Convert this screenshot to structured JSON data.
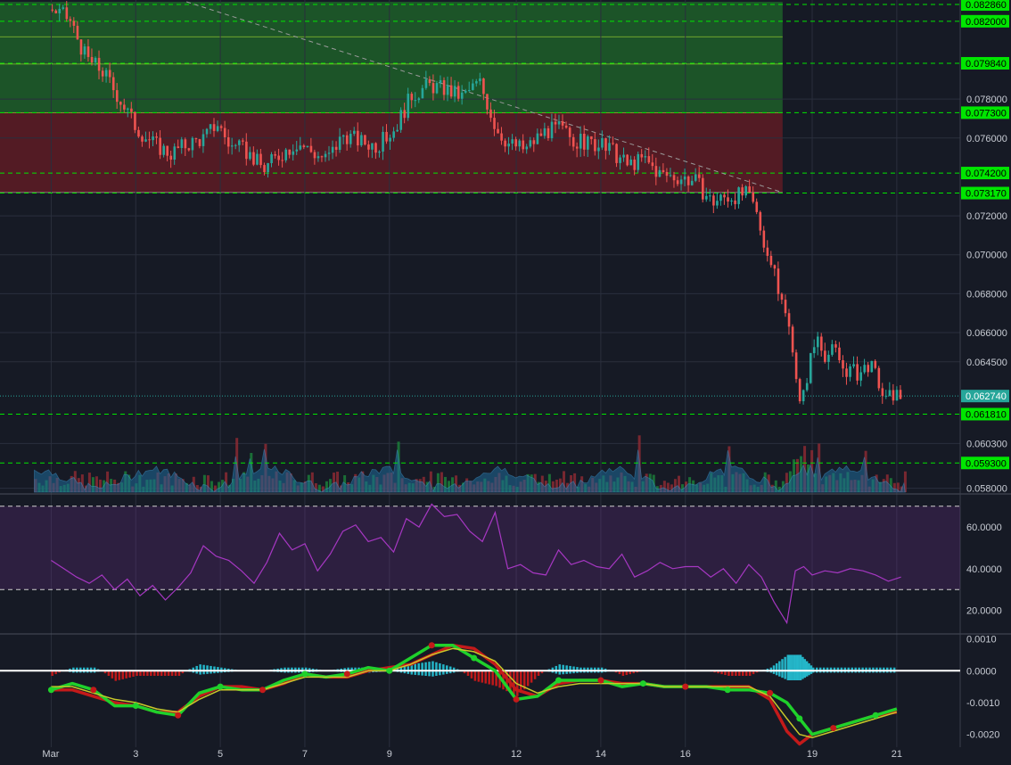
{
  "chart_data": [
    {
      "type": "candlestick",
      "panel": "price",
      "ylim": [
        0.0578,
        0.083
      ],
      "x_range": [
        0.0,
        22.5
      ],
      "price_ticks": [
        "0.078000",
        "0.076000",
        "0.072000",
        "0.070000",
        "0.068000",
        "0.066000",
        "0.064500",
        "0.060300",
        "0.058000"
      ],
      "x_ticks": [
        {
          "x": 1.0,
          "label": "Mar"
        },
        {
          "x": 3.0,
          "label": "3"
        },
        {
          "x": 5.0,
          "label": "5"
        },
        {
          "x": 7.0,
          "label": "7"
        },
        {
          "x": 9.0,
          "label": "9"
        },
        {
          "x": 12.0,
          "label": "12"
        },
        {
          "x": 14.0,
          "label": "14"
        },
        {
          "x": 16.0,
          "label": "16"
        },
        {
          "x": 19.0,
          "label": "19"
        },
        {
          "x": 21.0,
          "label": "21"
        }
      ],
      "horizontal_levels": [
        {
          "value": 0.08286,
          "label": "0.082860",
          "color": "#00e600"
        },
        {
          "value": 0.082,
          "label": "0.082000",
          "color": "#00e600"
        },
        {
          "value": 0.07984,
          "label": "0.079840",
          "color": "#00e600"
        },
        {
          "value": 0.0773,
          "label": "0.077300",
          "color": "#00e600"
        },
        {
          "value": 0.0742,
          "label": "0.074200",
          "color": "#00e600"
        },
        {
          "value": 0.07317,
          "label": "0.073170",
          "color": "#00e600"
        },
        {
          "value": 0.06181,
          "label": "0.061810",
          "color": "#00e600"
        },
        {
          "value": 0.0593,
          "label": "0.059300",
          "color": "#00e600"
        }
      ],
      "last_price": {
        "value": 0.06274,
        "label": "0.062740",
        "color": "#26a69a"
      },
      "zones": [
        {
          "from": 0.0773,
          "to": 0.083,
          "color": "#1f6b2a"
        },
        {
          "from": 0.0732,
          "to": 0.0773,
          "color": "#6b1c24"
        }
      ],
      "zone_end_x": 18.3,
      "trendline": {
        "from": [
          4.2,
          0.083
        ],
        "to": [
          18.3,
          0.0732
        ]
      },
      "close_path": [
        [
          1.0,
          0.0826
        ],
        [
          1.4,
          0.0821
        ],
        [
          1.8,
          0.0801
        ],
        [
          2.2,
          0.0794
        ],
        [
          2.6,
          0.078
        ],
        [
          3.0,
          0.0765
        ],
        [
          3.4,
          0.0757
        ],
        [
          3.8,
          0.0752
        ],
        [
          4.2,
          0.0757
        ],
        [
          4.6,
          0.076
        ],
        [
          4.9,
          0.0768
        ],
        [
          5.2,
          0.0756
        ],
        [
          5.6,
          0.0753
        ],
        [
          6.0,
          0.0744
        ],
        [
          6.4,
          0.0752
        ],
        [
          6.8,
          0.0758
        ],
        [
          7.2,
          0.0752
        ],
        [
          7.5,
          0.0749
        ],
        [
          7.9,
          0.0762
        ],
        [
          8.3,
          0.0758
        ],
        [
          8.7,
          0.0756
        ],
        [
          9.1,
          0.0765
        ],
        [
          9.5,
          0.0782
        ],
        [
          9.9,
          0.0787
        ],
        [
          10.3,
          0.0785
        ],
        [
          10.7,
          0.0781
        ],
        [
          11.1,
          0.0789
        ],
        [
          11.5,
          0.0765
        ],
        [
          11.8,
          0.0757
        ],
        [
          12.2,
          0.0754
        ],
        [
          12.6,
          0.0763
        ],
        [
          13.0,
          0.0765
        ],
        [
          13.4,
          0.0758
        ],
        [
          13.8,
          0.0757
        ],
        [
          14.2,
          0.0754
        ],
        [
          14.6,
          0.0746
        ],
        [
          15.0,
          0.0749
        ],
        [
          15.4,
          0.0741
        ],
        [
          15.8,
          0.074
        ],
        [
          16.2,
          0.0738
        ],
        [
          16.6,
          0.0727
        ],
        [
          17.0,
          0.073
        ],
        [
          17.4,
          0.0731
        ],
        [
          17.6,
          0.0725
        ],
        [
          17.9,
          0.0702
        ],
        [
          18.2,
          0.068
        ],
        [
          18.5,
          0.0656
        ],
        [
          18.7,
          0.0619
        ],
        [
          18.9,
          0.0644
        ],
        [
          19.1,
          0.0659
        ],
        [
          19.3,
          0.0648
        ],
        [
          19.5,
          0.0651
        ],
        [
          19.7,
          0.0642
        ],
        [
          19.9,
          0.064
        ],
        [
          20.1,
          0.0639
        ],
        [
          20.3,
          0.0644
        ],
        [
          20.5,
          0.0637
        ],
        [
          20.7,
          0.0624
        ],
        [
          20.9,
          0.0629
        ],
        [
          21.1,
          0.0627
        ]
      ]
    },
    {
      "type": "histogram",
      "panel": "volume",
      "note_overlay_area": true,
      "color_up": "#1b7c3a",
      "color_down": "#8a2a33",
      "area_color": "#1e6a9a"
    },
    {
      "type": "line",
      "panel": "rsi",
      "ylim": [
        10,
        75
      ],
      "ticks": [
        "60.0000",
        "40.0000",
        "20.0000"
      ],
      "band": [
        30,
        70
      ],
      "color": "#a637c2",
      "x": [
        1.0,
        1.3,
        1.6,
        1.9,
        2.2,
        2.5,
        2.8,
        3.1,
        3.4,
        3.7,
        4.0,
        4.3,
        4.6,
        4.9,
        5.2,
        5.5,
        5.8,
        6.1,
        6.4,
        6.7,
        7.0,
        7.3,
        7.6,
        7.9,
        8.2,
        8.5,
        8.8,
        9.1,
        9.4,
        9.7,
        10.0,
        10.3,
        10.6,
        10.9,
        11.2,
        11.5,
        11.8,
        12.1,
        12.4,
        12.7,
        13.0,
        13.3,
        13.6,
        13.9,
        14.2,
        14.5,
        14.8,
        15.1,
        15.4,
        15.7,
        16.0,
        16.3,
        16.6,
        16.9,
        17.2,
        17.5,
        17.8,
        18.1,
        18.4,
        18.6,
        18.8,
        19.0,
        19.3,
        19.6,
        19.9,
        20.2,
        20.5,
        20.8,
        21.1
      ],
      "values": [
        44,
        40,
        36,
        33,
        37,
        30,
        35,
        27,
        32,
        25,
        31,
        38,
        51,
        46,
        44,
        39,
        33,
        43,
        57,
        49,
        52,
        39,
        47,
        58,
        61,
        53,
        55,
        48,
        64,
        60,
        71,
        65,
        66,
        58,
        53,
        67,
        40,
        42,
        38,
        37,
        49,
        42,
        44,
        41,
        40,
        47,
        36,
        39,
        43,
        40,
        41,
        41,
        36,
        40,
        33,
        42,
        36,
        24,
        14,
        39,
        41,
        37,
        39,
        38,
        40,
        39,
        37,
        34,
        36
      ]
    },
    {
      "type": "line",
      "panel": "macd",
      "ylim": [
        -0.0024,
        0.0011
      ],
      "ticks": [
        "0.0010",
        "0.0000",
        "-0.0010",
        "-0.0020"
      ],
      "x": [
        1.0,
        1.5,
        2.0,
        2.5,
        3.0,
        3.5,
        4.0,
        4.5,
        5.0,
        5.5,
        6.0,
        6.5,
        7.0,
        7.5,
        8.0,
        8.5,
        9.0,
        9.5,
        10.0,
        10.5,
        11.0,
        11.5,
        12.0,
        12.5,
        13.0,
        13.5,
        14.0,
        14.5,
        15.0,
        15.5,
        16.0,
        16.5,
        17.0,
        17.5,
        18.0,
        18.4,
        18.7,
        19.0,
        19.5,
        20.0,
        20.5,
        21.0
      ],
      "series": [
        {
          "color": "#1fd12b",
          "values": [
            -0.0006,
            -0.0004,
            -0.0006,
            -0.0011,
            -0.0011,
            -0.0013,
            -0.0014,
            -0.0007,
            -0.0005,
            -0.0006,
            -0.0006,
            -0.0003,
            -0.0001,
            -0.0002,
            -0.0001,
            0.0001,
            0.0,
            0.0004,
            0.0008,
            0.0008,
            0.0004,
            0.0,
            -0.0009,
            -0.0008,
            -0.0003,
            -0.0003,
            -0.0003,
            -0.0005,
            -0.0004,
            -0.0005,
            -0.0005,
            -0.0005,
            -0.0006,
            -0.0006,
            -0.0007,
            -0.001,
            -0.0015,
            -0.002,
            -0.0018,
            -0.0016,
            -0.0014,
            -0.0012
          ]
        },
        {
          "color": "#c41a1a",
          "values": [
            -0.0006,
            -0.0006,
            -0.0008,
            -0.001,
            -0.0011,
            -0.0013,
            -0.0013,
            -0.0008,
            -0.0005,
            -0.0005,
            -0.0006,
            -0.0004,
            -0.0001,
            -0.0002,
            -0.0002,
            0.0,
            0.0001,
            0.0002,
            0.0005,
            0.0008,
            0.0007,
            0.0002,
            -0.0006,
            -0.0008,
            -0.0004,
            -0.0003,
            -0.0003,
            -0.0004,
            -0.0004,
            -0.0005,
            -0.0005,
            -0.0005,
            -0.0005,
            -0.0005,
            -0.0009,
            -0.0019,
            -0.0023,
            -0.002,
            -0.0018,
            -0.0016,
            -0.0014,
            -0.0013
          ]
        },
        {
          "color": "#c8c82a",
          "values": [
            -0.0005,
            -0.0005,
            -0.0007,
            -0.0009,
            -0.001,
            -0.0012,
            -0.0013,
            -0.0009,
            -0.0006,
            -0.0006,
            -0.0006,
            -0.0004,
            -0.0002,
            -0.0002,
            -0.0002,
            0.0,
            0.0,
            0.0002,
            0.0005,
            0.0007,
            0.0006,
            0.0003,
            -0.0004,
            -0.0007,
            -0.0005,
            -0.0004,
            -0.0004,
            -0.0004,
            -0.0004,
            -0.0005,
            -0.0005,
            -0.0005,
            -0.0005,
            -0.0005,
            -0.0008,
            -0.0015,
            -0.002,
            -0.0021,
            -0.0019,
            -0.0017,
            -0.0015,
            -0.0013
          ]
        }
      ]
    }
  ]
}
